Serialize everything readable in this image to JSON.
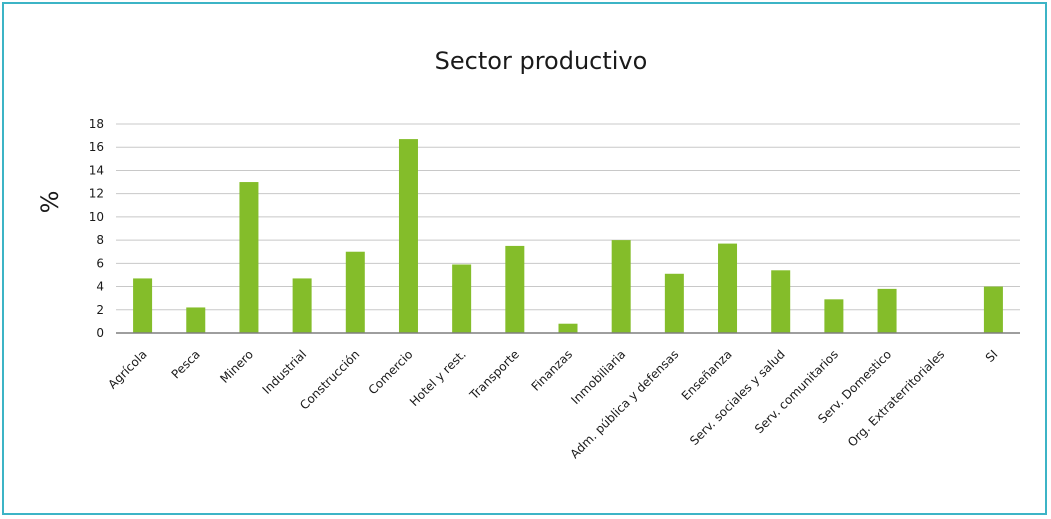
{
  "chart_data": {
    "type": "bar",
    "title": "Sector productivo",
    "xlabel": "",
    "ylabel": "%",
    "ylim": [
      0,
      18
    ],
    "yticks": [
      0,
      2,
      4,
      6,
      8,
      10,
      12,
      14,
      16,
      18
    ],
    "grid": true,
    "legend": "none",
    "bar_color": "#84bd2a",
    "grid_color": "#c8c8c8",
    "categories": [
      "Agrícola",
      "Pesca",
      "Minero",
      "Industrial",
      "Construcción",
      "Comercio",
      "Hotel y rest.",
      "Transporte",
      "Finanzas",
      "Inmobiliaria",
      "Adm. pública y defensas",
      "Enseñanza",
      "Serv. sociales y salud",
      "Serv. comunitarios",
      "Serv. Domestico",
      "Org. Extraterritoriales",
      "SI"
    ],
    "values": [
      4.7,
      2.2,
      13.0,
      4.7,
      7.0,
      16.7,
      5.9,
      7.5,
      0.8,
      8.0,
      5.1,
      7.7,
      5.4,
      2.9,
      3.8,
      0,
      4.0
    ]
  }
}
